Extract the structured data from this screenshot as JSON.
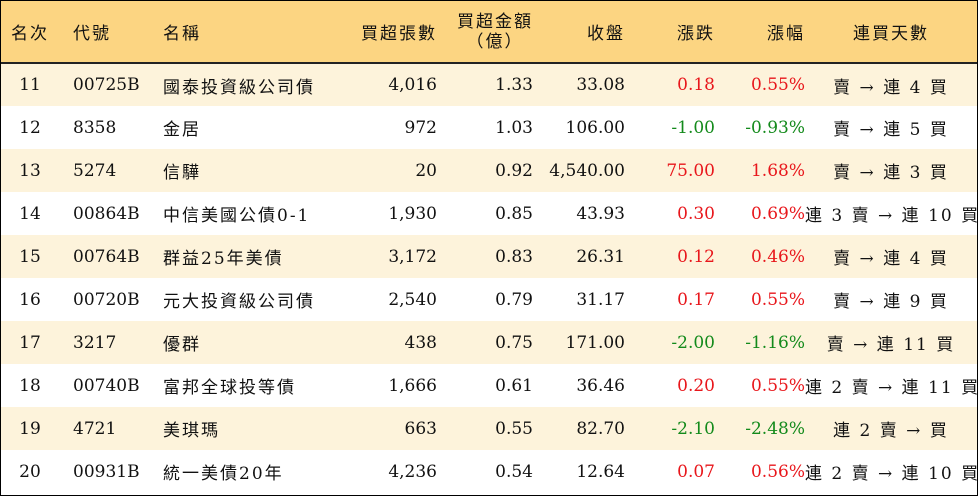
{
  "headers": {
    "rank": "名次",
    "code": "代號",
    "name": "名稱",
    "volume": "買超張數",
    "amount_line1": "買超金額",
    "amount_line2": "（億）",
    "close": "收盤",
    "change": "漲跌",
    "change_pct": "漲幅",
    "days": "連買天數"
  },
  "colors": {
    "header_bg": "#fcd582",
    "odd_row_bg": "#fdf3db",
    "up": "#e8161b",
    "down": "#138a1b"
  },
  "rows": [
    {
      "rank": "11",
      "code": "00725B",
      "name": "國泰投資級公司債",
      "volume": "4,016",
      "amount": "1.33",
      "close": "33.08",
      "change": "0.18",
      "change_pct": "0.55%",
      "direction": "up",
      "days": "賣 → 連 4 買"
    },
    {
      "rank": "12",
      "code": "8358",
      "name": "金居",
      "volume": "972",
      "amount": "1.03",
      "close": "106.00",
      "change": "-1.00",
      "change_pct": "-0.93%",
      "direction": "down",
      "days": "賣 → 連 5 買"
    },
    {
      "rank": "13",
      "code": "5274",
      "name": "信驊",
      "volume": "20",
      "amount": "0.92",
      "close": "4,540.00",
      "change": "75.00",
      "change_pct": "1.68%",
      "direction": "up",
      "days": "賣 → 連 3 買"
    },
    {
      "rank": "14",
      "code": "00864B",
      "name": "中信美國公債0-1",
      "volume": "1,930",
      "amount": "0.85",
      "close": "43.93",
      "change": "0.30",
      "change_pct": "0.69%",
      "direction": "up",
      "days": "連 3 賣 → 連 10 買"
    },
    {
      "rank": "15",
      "code": "00764B",
      "name": "群益25年美債",
      "volume": "3,172",
      "amount": "0.83",
      "close": "26.31",
      "change": "0.12",
      "change_pct": "0.46%",
      "direction": "up",
      "days": "賣 → 連 4 買"
    },
    {
      "rank": "16",
      "code": "00720B",
      "name": "元大投資級公司債",
      "volume": "2,540",
      "amount": "0.79",
      "close": "31.17",
      "change": "0.17",
      "change_pct": "0.55%",
      "direction": "up",
      "days": "賣 → 連 9 買"
    },
    {
      "rank": "17",
      "code": "3217",
      "name": "優群",
      "volume": "438",
      "amount": "0.75",
      "close": "171.00",
      "change": "-2.00",
      "change_pct": "-1.16%",
      "direction": "down",
      "days": "賣 → 連 11 買"
    },
    {
      "rank": "18",
      "code": "00740B",
      "name": "富邦全球投等債",
      "volume": "1,666",
      "amount": "0.61",
      "close": "36.46",
      "change": "0.20",
      "change_pct": "0.55%",
      "direction": "up",
      "days": "連 2 賣 → 連 11 買"
    },
    {
      "rank": "19",
      "code": "4721",
      "name": "美琪瑪",
      "volume": "663",
      "amount": "0.55",
      "close": "82.70",
      "change": "-2.10",
      "change_pct": "-2.48%",
      "direction": "down",
      "days": "連 2 賣 → 買"
    },
    {
      "rank": "20",
      "code": "00931B",
      "name": "統一美債20年",
      "volume": "4,236",
      "amount": "0.54",
      "close": "12.64",
      "change": "0.07",
      "change_pct": "0.56%",
      "direction": "up",
      "days": "連 2 賣 → 連 10 買"
    }
  ]
}
